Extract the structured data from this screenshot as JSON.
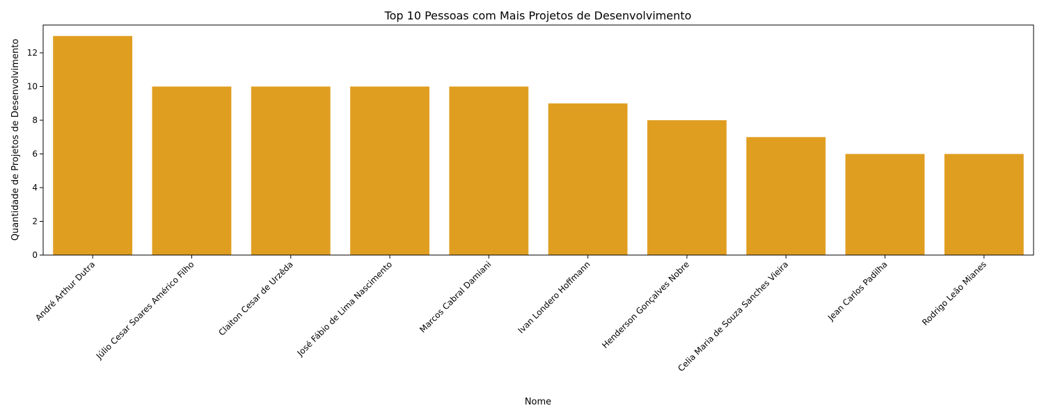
{
  "chart_data": {
    "type": "bar",
    "title": "Top 10 Pessoas com Mais Projetos de Desenvolvimento",
    "xlabel": "Nome",
    "ylabel": "Quantidade de Projetos de Desenvolvimento",
    "categories": [
      "André Arthur Dutra",
      "Júlio Cesar Soares Américo Filho",
      "Claiton Cesar de Urzêda",
      "José Fábio de Lima Nascimento",
      "Marcos Cabral Damiani",
      "Ivan Londero Hoffmann",
      "Henderson Gonçalves Nobre",
      "Celia Maria de Souza Sanches Vieira",
      "Jean Carlos Padilha",
      "Rodrigo Leão Mianes"
    ],
    "values": [
      13,
      10,
      10,
      10,
      10,
      9,
      8,
      7,
      6,
      6
    ],
    "ylim": [
      0,
      13.65
    ],
    "yticks": [
      0,
      2,
      4,
      6,
      8,
      10,
      12
    ],
    "bar_color": "#e09e21",
    "grid": false,
    "legend": "none"
  }
}
